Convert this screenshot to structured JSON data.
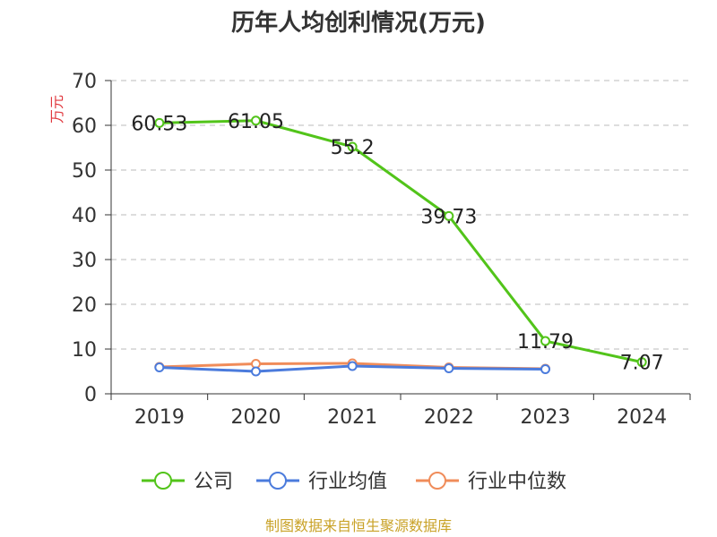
{
  "chart_data": {
    "type": "line",
    "title": "历年人均创利情况(万元)",
    "ylabel": "万元",
    "xlabel": "",
    "categories": [
      "2019",
      "2020",
      "2021",
      "2022",
      "2023",
      "2024"
    ],
    "ylim": [
      0,
      70
    ],
    "yticks": [
      "0",
      "10",
      "20",
      "30",
      "40",
      "50",
      "60",
      "70"
    ],
    "grid": true,
    "legend_position": "bottom",
    "series": [
      {
        "name": "公司",
        "color": "#52c41a",
        "values": [
          60.53,
          61.05,
          55.2,
          39.73,
          11.79,
          7.07
        ],
        "labels": [
          "60.53",
          "61.05",
          "55.2",
          "39.73",
          "11.79",
          "7.07"
        ]
      },
      {
        "name": "行业均值",
        "color": "#4b7bdc",
        "values": [
          5.9,
          5.0,
          6.2,
          5.7,
          5.5,
          null
        ]
      },
      {
        "name": "行业中位数",
        "color": "#f08c5a",
        "values": [
          6.0,
          6.7,
          6.8,
          5.9,
          5.6,
          null
        ]
      }
    ],
    "source": "制图数据来自恒生聚源数据库",
    "ylabel_color": "#e0383e",
    "source_color": "#c9a227"
  }
}
